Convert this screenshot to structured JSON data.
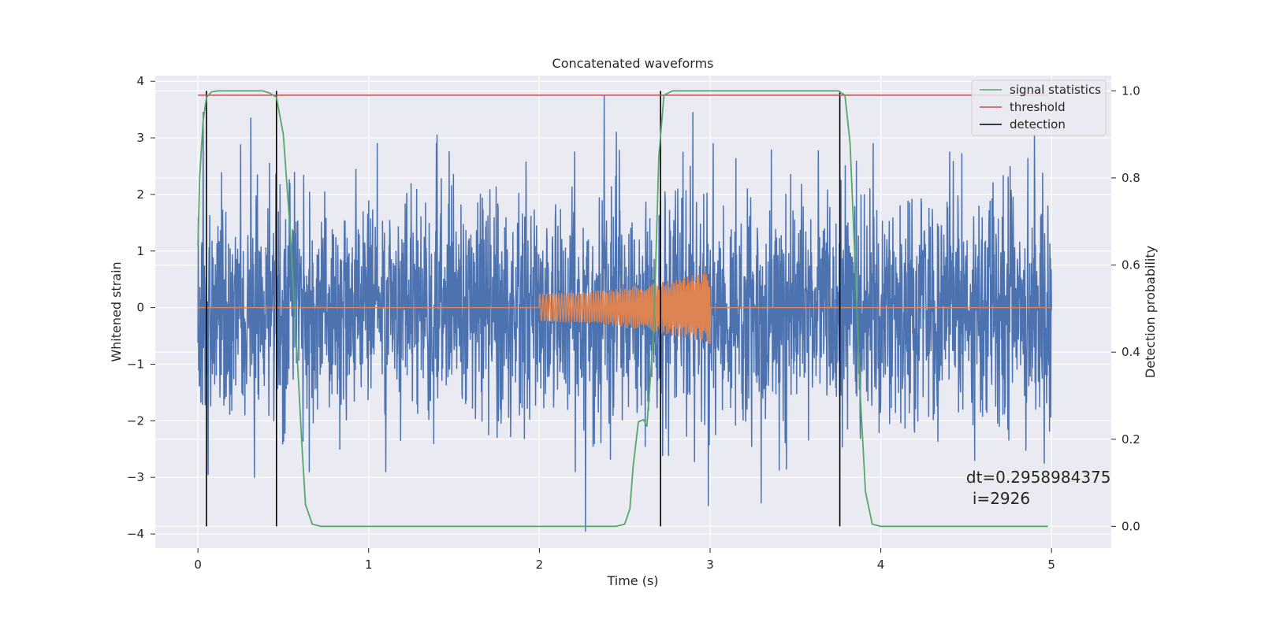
{
  "chart_data": {
    "type": "line",
    "title": "Concatenated waveforms",
    "xlabel": "Time (s)",
    "ylabel": "Whitened strain",
    "y2label": "Detection probability",
    "xlim": [
      -0.25,
      5.35
    ],
    "ylim": [
      -4.25,
      4.1
    ],
    "y2lim": [
      -0.05,
      1.035
    ],
    "x_ticks": [
      0,
      1,
      2,
      3,
      4,
      5
    ],
    "y_ticks": [
      -4,
      -3,
      -2,
      -1,
      0,
      1,
      2,
      3,
      4
    ],
    "y2_ticks": [
      0.0,
      0.2,
      0.4,
      0.6,
      0.8,
      1.0
    ],
    "x_tick_labels": [
      "0",
      "1",
      "2",
      "3",
      "4",
      "5"
    ],
    "y_tick_labels": [
      "−4",
      "−3",
      "−2",
      "−1",
      "0",
      "1",
      "2",
      "3",
      "4"
    ],
    "y2_tick_labels": [
      "0.0",
      "0.2",
      "0.4",
      "0.6",
      "0.8",
      "1.0"
    ],
    "grid": true,
    "background": "#eaeaf2",
    "legend_position": "top-right",
    "series": [
      {
        "name": "",
        "axis": "left",
        "color": "#4c72b0",
        "kind": "whitened noise, approx. gaussian",
        "x_range": [
          0,
          5
        ],
        "typical_abs": 1.0,
        "peaks": [
          {
            "x": 0.03,
            "y": 3.45
          },
          {
            "x": 0.06,
            "y": -2.95
          },
          {
            "x": 0.31,
            "y": 3.35
          },
          {
            "x": 0.33,
            "y": -3.0
          },
          {
            "x": 0.42,
            "y": 2.55
          },
          {
            "x": 1.4,
            "y": 3.05
          },
          {
            "x": 1.1,
            "y": -2.9
          },
          {
            "x": 2.27,
            "y": -3.95
          },
          {
            "x": 2.38,
            "y": 3.75
          },
          {
            "x": 2.45,
            "y": 3.1
          },
          {
            "x": 2.9,
            "y": 3.45
          },
          {
            "x": 2.99,
            "y": -3.5
          },
          {
            "x": 3.3,
            "y": -3.45
          },
          {
            "x": 4.55,
            "y": -2.7
          },
          {
            "x": 4.9,
            "y": 3.05
          }
        ]
      },
      {
        "name": "",
        "axis": "left",
        "color": "#dd8452",
        "kind": "chirp injection",
        "x_range": [
          0,
          5
        ],
        "chirp_start": 2.0,
        "chirp_end": 3.0,
        "amp_start": 0.25,
        "amp_end": 0.65,
        "freq_start": 50,
        "freq_end": 115
      },
      {
        "name": "signal statistics",
        "axis": "right",
        "color": "#55a868",
        "points": [
          [
            0.0,
            0.645
          ],
          [
            0.01,
            0.8
          ],
          [
            0.03,
            0.93
          ],
          [
            0.05,
            0.985
          ],
          [
            0.08,
            0.998
          ],
          [
            0.12,
            1.0
          ],
          [
            0.38,
            1.0
          ],
          [
            0.42,
            0.995
          ],
          [
            0.46,
            0.985
          ],
          [
            0.5,
            0.9
          ],
          [
            0.54,
            0.68
          ],
          [
            0.58,
            0.4
          ],
          [
            0.61,
            0.18
          ],
          [
            0.63,
            0.05
          ],
          [
            0.67,
            0.005
          ],
          [
            0.72,
            0.0
          ],
          [
            2.45,
            0.0
          ],
          [
            2.5,
            0.005
          ],
          [
            2.53,
            0.04
          ],
          [
            2.55,
            0.14
          ],
          [
            2.58,
            0.24
          ],
          [
            2.61,
            0.245
          ],
          [
            2.63,
            0.23
          ],
          [
            2.67,
            0.45
          ],
          [
            2.7,
            0.85
          ],
          [
            2.73,
            0.99
          ],
          [
            2.78,
            1.0
          ],
          [
            3.75,
            1.0
          ],
          [
            3.79,
            0.99
          ],
          [
            3.82,
            0.88
          ],
          [
            3.85,
            0.6
          ],
          [
            3.88,
            0.3
          ],
          [
            3.91,
            0.08
          ],
          [
            3.95,
            0.005
          ],
          [
            4.0,
            0.0
          ],
          [
            4.98,
            0.0
          ]
        ]
      },
      {
        "name": "threshold",
        "axis": "right",
        "color": "#c44e52",
        "points": [
          [
            0.0,
            0.99
          ],
          [
            4.98,
            0.99
          ]
        ]
      },
      {
        "name": "detection",
        "axis": "right",
        "color": "#000000",
        "vlines": [
          0.05,
          0.46,
          2.71,
          3.76
        ],
        "y_range": [
          0.0,
          1.0
        ]
      }
    ],
    "annotation": {
      "line1": "dt=0.2958984375",
      "line2": "i=2926",
      "x": 4.5,
      "y": -3.0
    }
  }
}
